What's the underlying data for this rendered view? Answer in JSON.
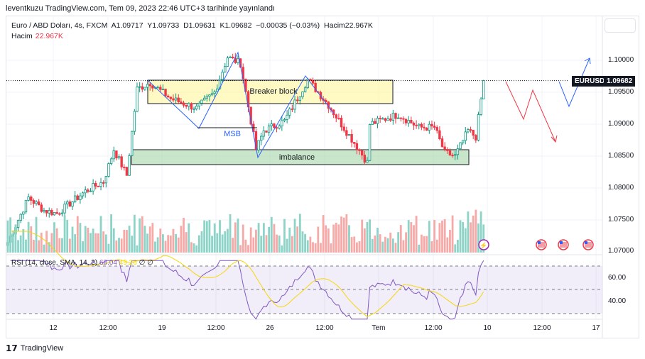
{
  "published": "leventkuzu TradingView.com, Tem 09, 2023 22:46 UTC+3 tarihinde yayınlandı",
  "legend": {
    "symbol": "Euro / ABD Doları, 4s, FXCM",
    "open": "A1.09717",
    "high": "Y1.09733",
    "low": "D1.09631",
    "close": "K1.09682",
    "change": "−0.00035 (−0.03%)",
    "volume": "Hacim22.967K",
    "vol_label": "Hacim",
    "vol_value": "22.967K"
  },
  "rsi_legend": {
    "label": "RSI (14, close, SMA, 14, 2)",
    "rsi": "68.04",
    "sma": "49.26",
    "x1": "∅",
    "x2": "∅"
  },
  "price_tag": {
    "symbol": "EURUSD",
    "price": "1.09682"
  },
  "annotations": {
    "breaker": "Breaker block",
    "imbalance": "imbalance",
    "msb": "MSB"
  },
  "footer": "TradingView",
  "colors": {
    "up": "#089981",
    "down": "#f23645",
    "vol_up": "#8dd3c7",
    "vol_down": "#f7a9a7",
    "rsi": "#7e57c2",
    "sma": "#f5d60a"
  },
  "chart_data": {
    "type": "candlestick",
    "symbol": "EURUSD",
    "timeframe": "4h",
    "price_ticks": [
      "1.10000",
      "1.09500",
      "1.09000",
      "1.08500",
      "1.08000",
      "1.07500",
      "1.07000"
    ],
    "rsi_ticks": [
      "60.00",
      "40.00"
    ],
    "time_ticks": [
      "12",
      "12:00",
      "19",
      "12:00",
      "26",
      "12:00",
      "Tem",
      "12:00",
      "10",
      "12:00",
      "17"
    ],
    "ylim": [
      1.07,
      1.102
    ],
    "waypoints": [
      [
        0,
        1.0715
      ],
      [
        8,
        1.0785
      ],
      [
        14,
        1.0765
      ],
      [
        19,
        1.076
      ],
      [
        30,
        1.0795
      ],
      [
        37,
        1.081
      ],
      [
        41,
        1.086
      ],
      [
        46,
        1.082
      ],
      [
        50,
        1.0955
      ],
      [
        55,
        1.0965
      ],
      [
        63,
        1.094
      ],
      [
        73,
        1.0925
      ],
      [
        80,
        1.095
      ],
      [
        85,
        1.1005
      ],
      [
        90,
        1.0995
      ],
      [
        96,
        1.086
      ],
      [
        99,
        1.089
      ],
      [
        107,
        1.0905
      ],
      [
        116,
        1.097
      ],
      [
        124,
        1.093
      ],
      [
        129,
        1.09
      ],
      [
        135,
        1.0865
      ],
      [
        139,
        1.084
      ],
      [
        140,
        1.09
      ],
      [
        147,
        1.091
      ],
      [
        151,
        1.0915
      ],
      [
        159,
        1.0895
      ],
      [
        165,
        1.0895
      ],
      [
        169,
        1.0855
      ],
      [
        173,
        1.085
      ],
      [
        178,
        1.089
      ],
      [
        181,
        1.088
      ],
      [
        184,
        1.0968
      ]
    ],
    "last_close": 1.09682
  }
}
